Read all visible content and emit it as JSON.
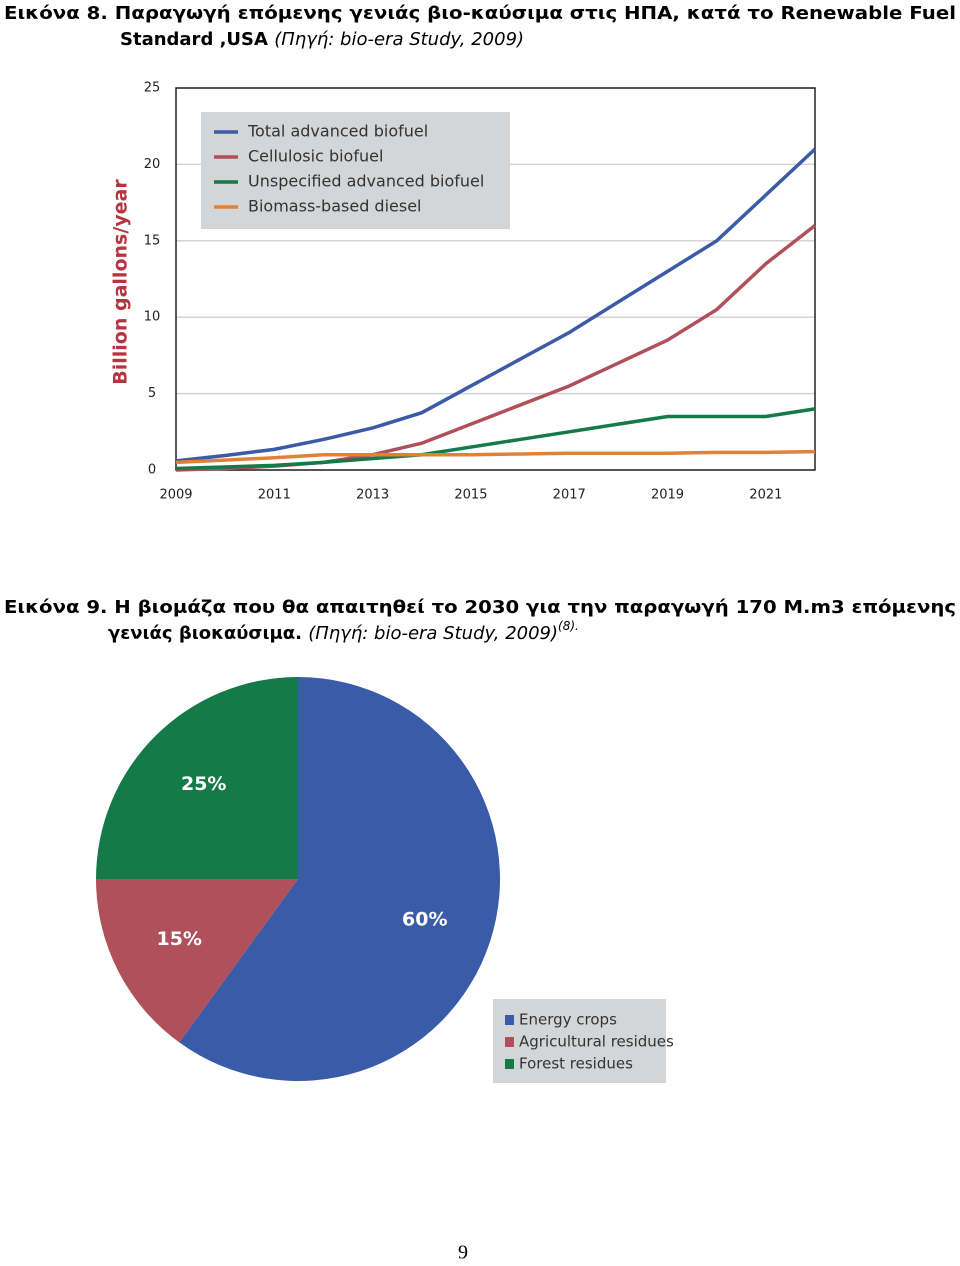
{
  "fig8_caption": {
    "lines": [
      "Εικόνα 8. Παραγωγή επόμενης γενιάς βιο-καύσιμα στις ΗΠΑ, κατά το Renewable Fuel",
      "Standard ,USA"
    ],
    "source": "(Πηγή: bio-era Study, 2009)"
  },
  "fig9_caption": {
    "lines": [
      "Εικόνα 9. Η βιομάζα που θα απαιτηθεί το 2030 για την παραγωγή 170 M.m3 επόμενης",
      "γενιάς βιοκαύσιμα."
    ],
    "source": "(Πηγή: bio-era Study, 2009)",
    "note": "(8)."
  },
  "chart_data": [
    {
      "type": "line",
      "ylabel": "Billion gallons/year",
      "x": [
        2009,
        2010,
        2011,
        2012,
        2013,
        2014,
        2015,
        2016,
        2017,
        2018,
        2019,
        2020,
        2021,
        2022
      ],
      "xlim": [
        2009,
        2022
      ],
      "xticks": [
        2009,
        2011,
        2013,
        2015,
        2017,
        2019,
        2021
      ],
      "ylim": [
        0,
        25
      ],
      "yticks": [
        0,
        5,
        10,
        15,
        20,
        25
      ],
      "grid": true,
      "legend": "upper left",
      "series": [
        {
          "name": "Total advanced biofuel",
          "color": "#3b5ba6",
          "values": [
            0.6,
            0.95,
            1.35,
            2.0,
            2.75,
            3.75,
            5.5,
            7.25,
            9.0,
            11.0,
            13.0,
            15.0,
            18.0,
            21.0
          ]
        },
        {
          "name": "Cellulosic biofuel",
          "color": "#b0505a",
          "values": [
            0,
            0.1,
            0.25,
            0.5,
            1.0,
            1.75,
            3.0,
            4.25,
            5.5,
            7.0,
            8.5,
            10.5,
            13.5,
            16.0
          ]
        },
        {
          "name": "Unspecified advanced biofuel",
          "color": "#147a48",
          "values": [
            0.1,
            0.2,
            0.3,
            0.5,
            0.75,
            1.0,
            1.5,
            2.0,
            2.5,
            3.0,
            3.5,
            3.5,
            3.5,
            4.0
          ]
        },
        {
          "name": "Biomass-based diesel",
          "color": "#e0813a",
          "values": [
            0.5,
            0.65,
            0.8,
            1.0,
            1.0,
            1.0,
            1.0,
            1.05,
            1.1,
            1.1,
            1.1,
            1.15,
            1.15,
            1.2
          ]
        }
      ]
    },
    {
      "type": "pie",
      "categories": [
        "Energy crops",
        "Agricultural residues",
        "Forest residues"
      ],
      "values": [
        60,
        15,
        25
      ],
      "value_labels": [
        "60%",
        "15%",
        "25%"
      ],
      "colors": [
        "#3a5ba7",
        "#b0505a",
        "#147a48"
      ],
      "legend": "lower right"
    }
  ],
  "page_number": "9"
}
